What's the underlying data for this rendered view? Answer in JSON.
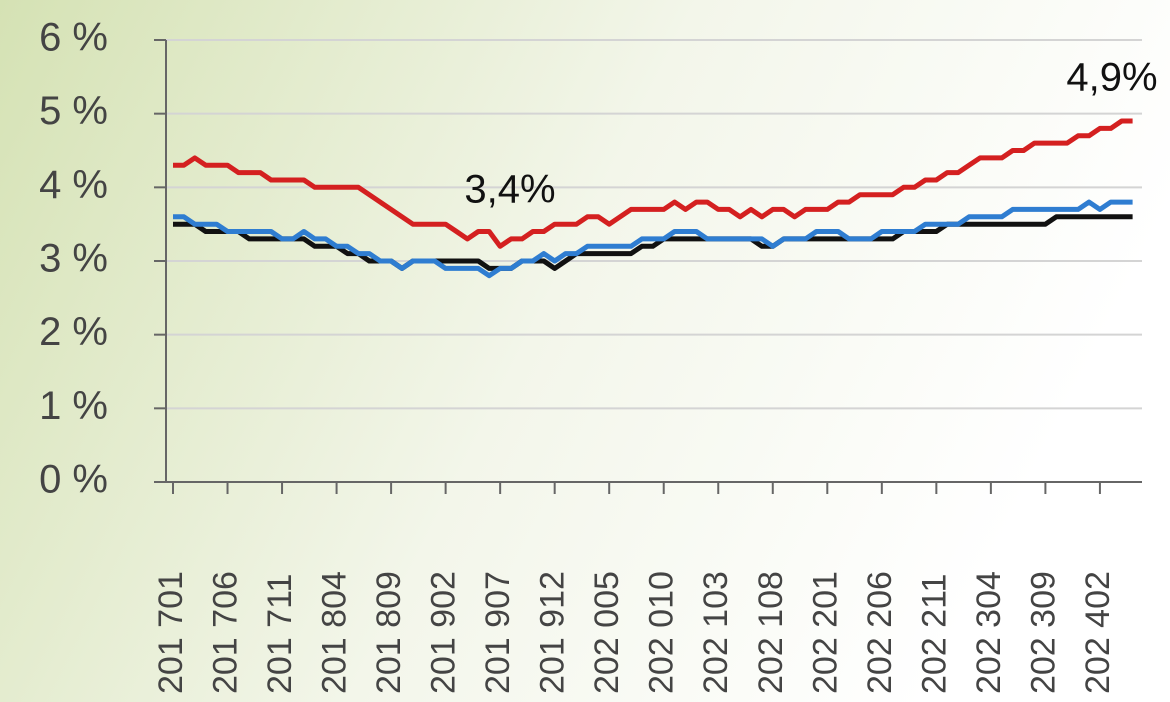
{
  "chart_data": {
    "type": "line",
    "categories": [
      "201 701",
      null,
      null,
      null,
      null,
      "201 706",
      null,
      null,
      null,
      null,
      "201 711",
      null,
      null,
      null,
      null,
      "201 804",
      null,
      null,
      null,
      null,
      "201 809",
      null,
      null,
      null,
      null,
      "201 902",
      null,
      null,
      null,
      null,
      "201 907",
      null,
      null,
      null,
      null,
      "201 912",
      null,
      null,
      null,
      null,
      "202 005",
      null,
      null,
      null,
      null,
      "202 010",
      null,
      null,
      null,
      null,
      "202 103",
      null,
      null,
      null,
      null,
      "202 108",
      null,
      null,
      null,
      null,
      "202 201",
      null,
      null,
      null,
      null,
      "202 206",
      null,
      null,
      null,
      null,
      "202 211",
      null,
      null,
      null,
      null,
      "202 304",
      null,
      null,
      null,
      null,
      "202 309",
      null,
      null,
      null,
      null,
      "202 402",
      null,
      null,
      null
    ],
    "series": [
      {
        "color": "#d42020",
        "values": [
          4.3,
          4.3,
          4.4,
          4.3,
          4.3,
          4.3,
          4.2,
          4.2,
          4.2,
          4.1,
          4.1,
          4.1,
          4.1,
          4.0,
          4.0,
          4.0,
          4.0,
          4.0,
          3.9,
          3.8,
          3.7,
          3.6,
          3.5,
          3.5,
          3.5,
          3.5,
          3.4,
          3.3,
          3.4,
          3.4,
          3.2,
          3.3,
          3.3,
          3.4,
          3.4,
          3.5,
          3.5,
          3.5,
          3.6,
          3.6,
          3.5,
          3.6,
          3.7,
          3.7,
          3.7,
          3.7,
          3.8,
          3.7,
          3.8,
          3.8,
          3.7,
          3.7,
          3.6,
          3.7,
          3.6,
          3.7,
          3.7,
          3.6,
          3.7,
          3.7,
          3.7,
          3.8,
          3.8,
          3.9,
          3.9,
          3.9,
          3.9,
          4.0,
          4.0,
          4.1,
          4.1,
          4.2,
          4.2,
          4.3,
          4.4,
          4.4,
          4.4,
          4.5,
          4.5,
          4.6,
          4.6,
          4.6,
          4.6,
          4.7,
          4.7,
          4.8,
          4.8,
          4.9,
          4.9
        ]
      },
      {
        "color": "#2f7dd1",
        "values": [
          3.6,
          3.6,
          3.5,
          3.5,
          3.5,
          3.4,
          3.4,
          3.4,
          3.4,
          3.4,
          3.3,
          3.3,
          3.4,
          3.3,
          3.3,
          3.2,
          3.2,
          3.1,
          3.1,
          3.0,
          3.0,
          2.9,
          3.0,
          3.0,
          3.0,
          2.9,
          2.9,
          2.9,
          2.9,
          2.8,
          2.9,
          2.9,
          3.0,
          3.0,
          3.1,
          3.0,
          3.1,
          3.1,
          3.2,
          3.2,
          3.2,
          3.2,
          3.2,
          3.3,
          3.3,
          3.3,
          3.4,
          3.4,
          3.4,
          3.3,
          3.3,
          3.3,
          3.3,
          3.3,
          3.3,
          3.2,
          3.3,
          3.3,
          3.3,
          3.4,
          3.4,
          3.4,
          3.3,
          3.3,
          3.3,
          3.4,
          3.4,
          3.4,
          3.4,
          3.5,
          3.5,
          3.5,
          3.5,
          3.6,
          3.6,
          3.6,
          3.6,
          3.7,
          3.7,
          3.7,
          3.7,
          3.7,
          3.7,
          3.7,
          3.8,
          3.7,
          3.8,
          3.8,
          3.8
        ]
      },
      {
        "color": "#111111",
        "values": [
          3.5,
          3.5,
          3.5,
          3.4,
          3.4,
          3.4,
          3.4,
          3.3,
          3.3,
          3.3,
          3.3,
          3.3,
          3.3,
          3.2,
          3.2,
          3.2,
          3.1,
          3.1,
          3.0,
          3.0,
          3.0,
          2.9,
          3.0,
          3.0,
          3.0,
          3.0,
          3.0,
          3.0,
          3.0,
          2.9,
          2.9,
          2.9,
          3.0,
          3.0,
          3.0,
          2.9,
          3.0,
          3.1,
          3.1,
          3.1,
          3.1,
          3.1,
          3.1,
          3.2,
          3.2,
          3.3,
          3.3,
          3.3,
          3.3,
          3.3,
          3.3,
          3.3,
          3.3,
          3.3,
          3.2,
          3.2,
          3.3,
          3.3,
          3.3,
          3.3,
          3.3,
          3.3,
          3.3,
          3.3,
          3.3,
          3.3,
          3.3,
          3.4,
          3.4,
          3.4,
          3.4,
          3.5,
          3.5,
          3.5,
          3.5,
          3.5,
          3.5,
          3.5,
          3.5,
          3.5,
          3.5,
          3.6,
          3.6,
          3.6,
          3.6,
          3.6,
          3.6,
          3.6,
          3.6
        ]
      }
    ],
    "ylim": [
      0,
      6
    ],
    "yticks": [
      {
        "value": 0,
        "label": "0 %"
      },
      {
        "value": 1,
        "label": "1 %"
      },
      {
        "value": 2,
        "label": "2 %"
      },
      {
        "value": 3,
        "label": "3 %"
      },
      {
        "value": 4,
        "label": "4 %"
      },
      {
        "value": 5,
        "label": "5 %"
      },
      {
        "value": 6,
        "label": "6 %"
      }
    ],
    "grid": true,
    "annotations": [
      {
        "text": "3,4%"
      },
      {
        "text": "4,9%"
      }
    ]
  }
}
